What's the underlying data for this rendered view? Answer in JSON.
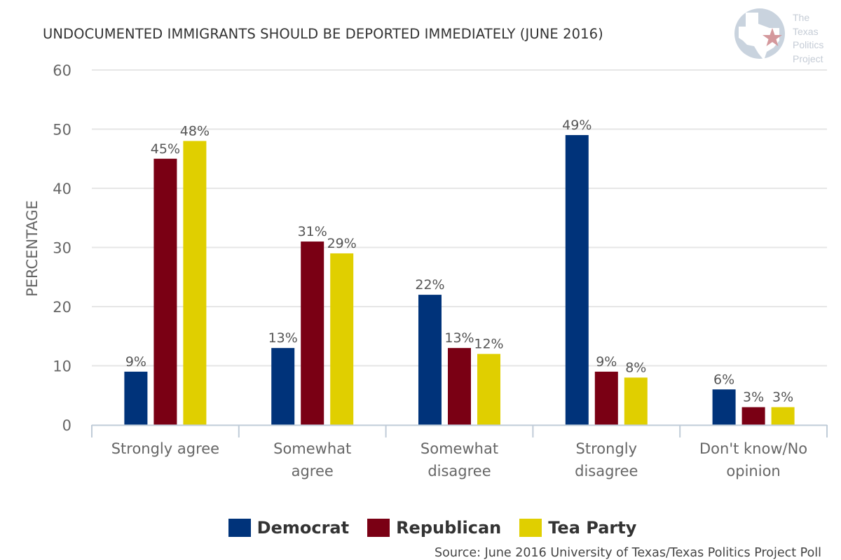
{
  "logo": {
    "text_lines": [
      "The",
      "Texas",
      "Politics",
      "Project"
    ]
  },
  "colors": {
    "Democrat": "#00337a",
    "Republican": "#7a0014",
    "Tea Party": "#e0cf00",
    "grid": "#e6e6e6",
    "axis": "#c0ccd8"
  },
  "chart_data": {
    "type": "bar",
    "title": "UNDOCUMENTED IMMIGRANTS SHOULD BE DEPORTED IMMEDIATELY (JUNE 2016)",
    "xlabel": "",
    "ylabel": "PERCENTAGE",
    "ylim": [
      0,
      60
    ],
    "yticks": [
      0,
      10,
      20,
      30,
      40,
      50,
      60
    ],
    "grid": true,
    "legend_position": "bottom",
    "categories": [
      [
        "Strongly agree"
      ],
      [
        "Somewhat",
        "agree"
      ],
      [
        "Somewhat",
        "disagree"
      ],
      [
        "Strongly",
        "disagree"
      ],
      [
        "Don't know/No",
        "opinion"
      ]
    ],
    "series": [
      {
        "name": "Democrat",
        "values": [
          9,
          13,
          22,
          49,
          6
        ]
      },
      {
        "name": "Republican",
        "values": [
          45,
          31,
          13,
          9,
          3
        ]
      },
      {
        "name": "Tea Party",
        "values": [
          48,
          29,
          12,
          8,
          3
        ]
      }
    ],
    "label_suffix": "%",
    "source": "Source: June 2016 University of Texas/Texas Politics Project Poll"
  }
}
